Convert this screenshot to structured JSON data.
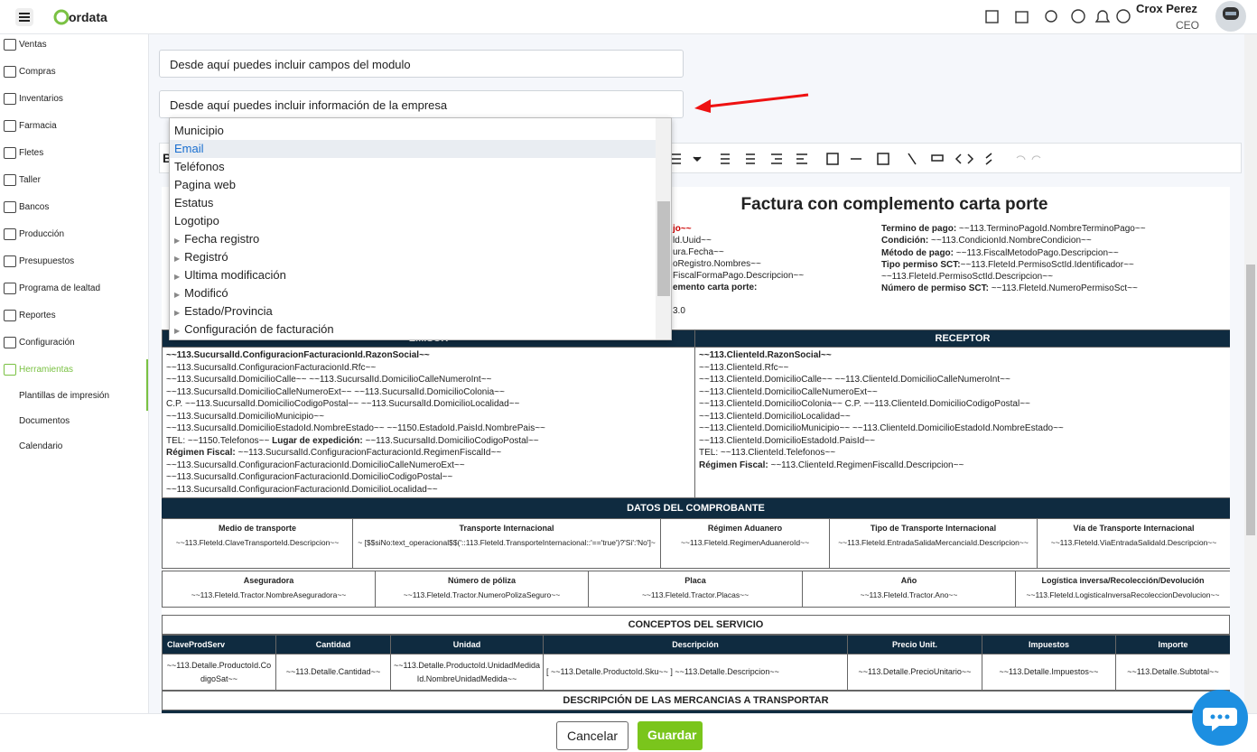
{
  "topbar": {
    "brand": "ordata",
    "user_name": "Crox Perez",
    "user_role": "CEO"
  },
  "sidebar": {
    "items": [
      "Ventas",
      "Compras",
      "Inventarios",
      "Farmacia",
      "Fletes",
      "Taller",
      "Bancos",
      "Producción",
      "Presupuestos",
      "Programa de lealtad",
      "Reportes",
      "Configuración",
      "Herramientas"
    ],
    "active": "Herramientas",
    "submenu": [
      "Plantillas de impresión",
      "Documentos",
      "Calendario"
    ]
  },
  "inputs": [
    "Desde aquí puedes incluir campos del modulo",
    "Desde aquí puedes incluir información de la empresa"
  ],
  "dropdown": {
    "items": [
      {
        "label": "Municipio"
      },
      {
        "label": "Email"
      },
      {
        "label": "Teléfonos"
      },
      {
        "label": "Pagina web"
      },
      {
        "label": "Estatus"
      },
      {
        "label": "Logotipo"
      },
      {
        "label": "Fecha registro",
        "group": true
      },
      {
        "label": "Registró",
        "group": true
      },
      {
        "label": "Ultima modificación",
        "group": true
      },
      {
        "label": "Modificó",
        "group": true
      },
      {
        "label": "Estado/Provincia",
        "group": true
      },
      {
        "label": "Configuración de facturación",
        "group": true
      }
    ],
    "highlighted": "Email"
  },
  "toolbar": {
    "format_label": "B"
  },
  "document": {
    "title": "Factura con complemento carta porte",
    "left_fragments": [
      {
        "text": "jo~~",
        "bold": true
      },
      "ld.Uuid~~",
      "ura.Fecha~~",
      "oRegistro.Nombres~~",
      "FiscalFormaPago.Descripcion~~",
      {
        "text": "emento carta porte:",
        "bold": true
      },
      "",
      "3.0"
    ],
    "right_lines": [
      [
        {
          "text": "Termino de pago:",
          "bold": true
        },
        " ~~113.TerminoPagoId.NombreTerminoPago~~"
      ],
      [
        {
          "text": "Condición:",
          "bold": true
        },
        " ~~113.CondicionId.NombreCondicion~~"
      ],
      [
        {
          "text": "Método de pago:",
          "bold": true
        },
        " ~~113.FiscalMetodoPago.Descripcion~~"
      ],
      [
        {
          "text": "Tipo permiso SCT:",
          "bold": true
        },
        "~~113.FleteId.PermisoSctId.Identificador~~"
      ],
      [
        "~~113.FleteId.PermisoSctId.Descripcion~~"
      ],
      [
        {
          "text": "Número de permiso SCT:",
          "bold": true
        },
        " ~~113.FleteId.NumeroPermisoSct~~"
      ]
    ],
    "emisor": {
      "title": "EMISOR",
      "lines": [
        [
          {
            "text": "~~113.SucursalId.ConfiguracionFacturacionId.RazonSocial~~",
            "bold": true
          }
        ],
        [
          "~~113.SucursalId.ConfiguracionFacturacionId.Rfc~~"
        ],
        [
          "~~113.SucursalId.DomicilioCalle~~ ~~113.SucursalId.DomicilioCalleNumeroInt~~"
        ],
        [
          "~~113.SucursalId.DomicilioCalleNumeroExt~~ ~~113.SucursalId.DomicilioColonia~~"
        ],
        [
          "C.P. ~~113.SucursalId.DomicilioCodigoPostal~~ ~~113.SucursalId.DomicilioLocalidad~~"
        ],
        [
          "~~113.SucursalId.DomicilioMunicipio~~"
        ],
        [
          "~~113.SucursalId.DomicilioEstadoId.NombreEstado~~ ~~1150.EstadoId.PaisId.NombrePais~~"
        ],
        [
          "TEL: ~~1150.Telefonos~~ ",
          {
            "text": "Lugar de expedición:",
            "bold": true
          },
          " ~~113.SucursalId.DomicilioCodigoPostal~~"
        ],
        [
          {
            "text": "Régimen Fiscal:",
            "bold": true
          },
          " ~~113.SucursalId.ConfiguracionFacturacionId.RegimenFiscalId~~"
        ],
        [
          "~~113.SucursalId.ConfiguracionFacturacionId.DomicilioCalleNumeroExt~~"
        ],
        [
          "~~113.SucursalId.ConfiguracionFacturacionId.DomicilioCodigoPostal~~"
        ],
        [
          "~~113.SucursalId.ConfiguracionFacturacionId.DomicilioLocalidad~~"
        ]
      ]
    },
    "receptor": {
      "title": "RECEPTOR",
      "lines": [
        [
          {
            "text": "~~113.ClienteId.RazonSocial~~",
            "bold": true
          }
        ],
        [
          "~~113.ClienteId.Rfc~~"
        ],
        [
          "~~113.ClienteId.DomicilioCalle~~ ~~113.ClienteId.DomicilioCalleNumeroInt~~"
        ],
        [
          "~~113.ClienteId.DomicilioCalleNumeroExt~~"
        ],
        [
          "~~113.ClienteId.DomicilioColonia~~ C.P. ~~113.ClienteId.DomicilioCodigoPostal~~"
        ],
        [
          "~~113.ClienteId.DomicilioLocalidad~~"
        ],
        [
          "~~113.ClienteId.DomicilioMunicipio~~ ~~113.ClienteId.DomicilioEstadoId.NombreEstado~~"
        ],
        [
          "~~113.ClienteId.DomicilioEstadoId.PaisId~~"
        ],
        [
          "TEL: ~~113.ClienteId.Telefonos~~"
        ],
        [
          {
            "text": "Régimen Fiscal:",
            "bold": true
          },
          " ~~113.ClienteId.RegimenFiscalId.Descripcion~~"
        ]
      ]
    },
    "comprobante": {
      "title": "DATOS DEL COMPROBANTE",
      "rows": [
        {
          "headers": [
            "Medio de transporte",
            "Transporte Internacional",
            "Régimen Aduanero",
            "Tipo de Transporte Internacional",
            "Vía de Transporte Internacional"
          ],
          "values": [
            "~~113.FleteId.ClaveTransporteId.Descripcion~~",
            "~ [$$siNo:text_operacional$$('::113.FleteId.TransporteInternacional::'=='true')?'Si':'No']~",
            "~~113.FleteId.RegimenAduaneroId~~",
            "~~113.FleteId.EntradaSalidaMercanciaId.Descripcion~~",
            "~~113.FleteId.ViaEntradaSalidaId.Descripcion~~"
          ]
        },
        {
          "headers": [
            "Aseguradora",
            "Número de póliza",
            "Placa",
            "Año",
            "Logística inversa/Recolección/Devolución"
          ],
          "values": [
            "~~113.FleteId.Tractor.NombreAseguradora~~",
            "~~113.FleteId.Tractor.NumeroPolizaSeguro~~",
            "~~113.FleteId.Tractor.Placas~~",
            "~~113.FleteId.Tractor.Ano~~",
            "~~113.FleteId.LogisticaInversaRecoleccionDevolucion~~"
          ]
        }
      ]
    },
    "conceptos": {
      "title": "CONCEPTOS DEL SERVICIO",
      "headers": [
        "ClaveProdServ",
        "Cantidad",
        "Unidad",
        "Descripción",
        "Precio Unit.",
        "Impuestos",
        "Importe"
      ],
      "values": [
        "~~113.Detalle.ProductoId.CodigoSat~~",
        "~~113.Detalle.Cantidad~~",
        "~~113.Detalle.ProductoId.UnidadMedidaId.NombreUnidadMedida~~",
        "[ ~~113.Detalle.ProductoId.Sku~~ ] ~~113.Detalle.Descripcion~~",
        "~~113.Detalle.PrecioUnitario~~",
        "~~113.Detalle.Impuestos~~",
        "~~113.Detalle.Subtotal~~"
      ]
    },
    "mercancias": {
      "title": "DESCRIPCIÓN DE LAS MERCANCIAS A TRANSPORTAR"
    }
  },
  "footer": {
    "cancel": "Cancelar",
    "save": "Guardar"
  }
}
